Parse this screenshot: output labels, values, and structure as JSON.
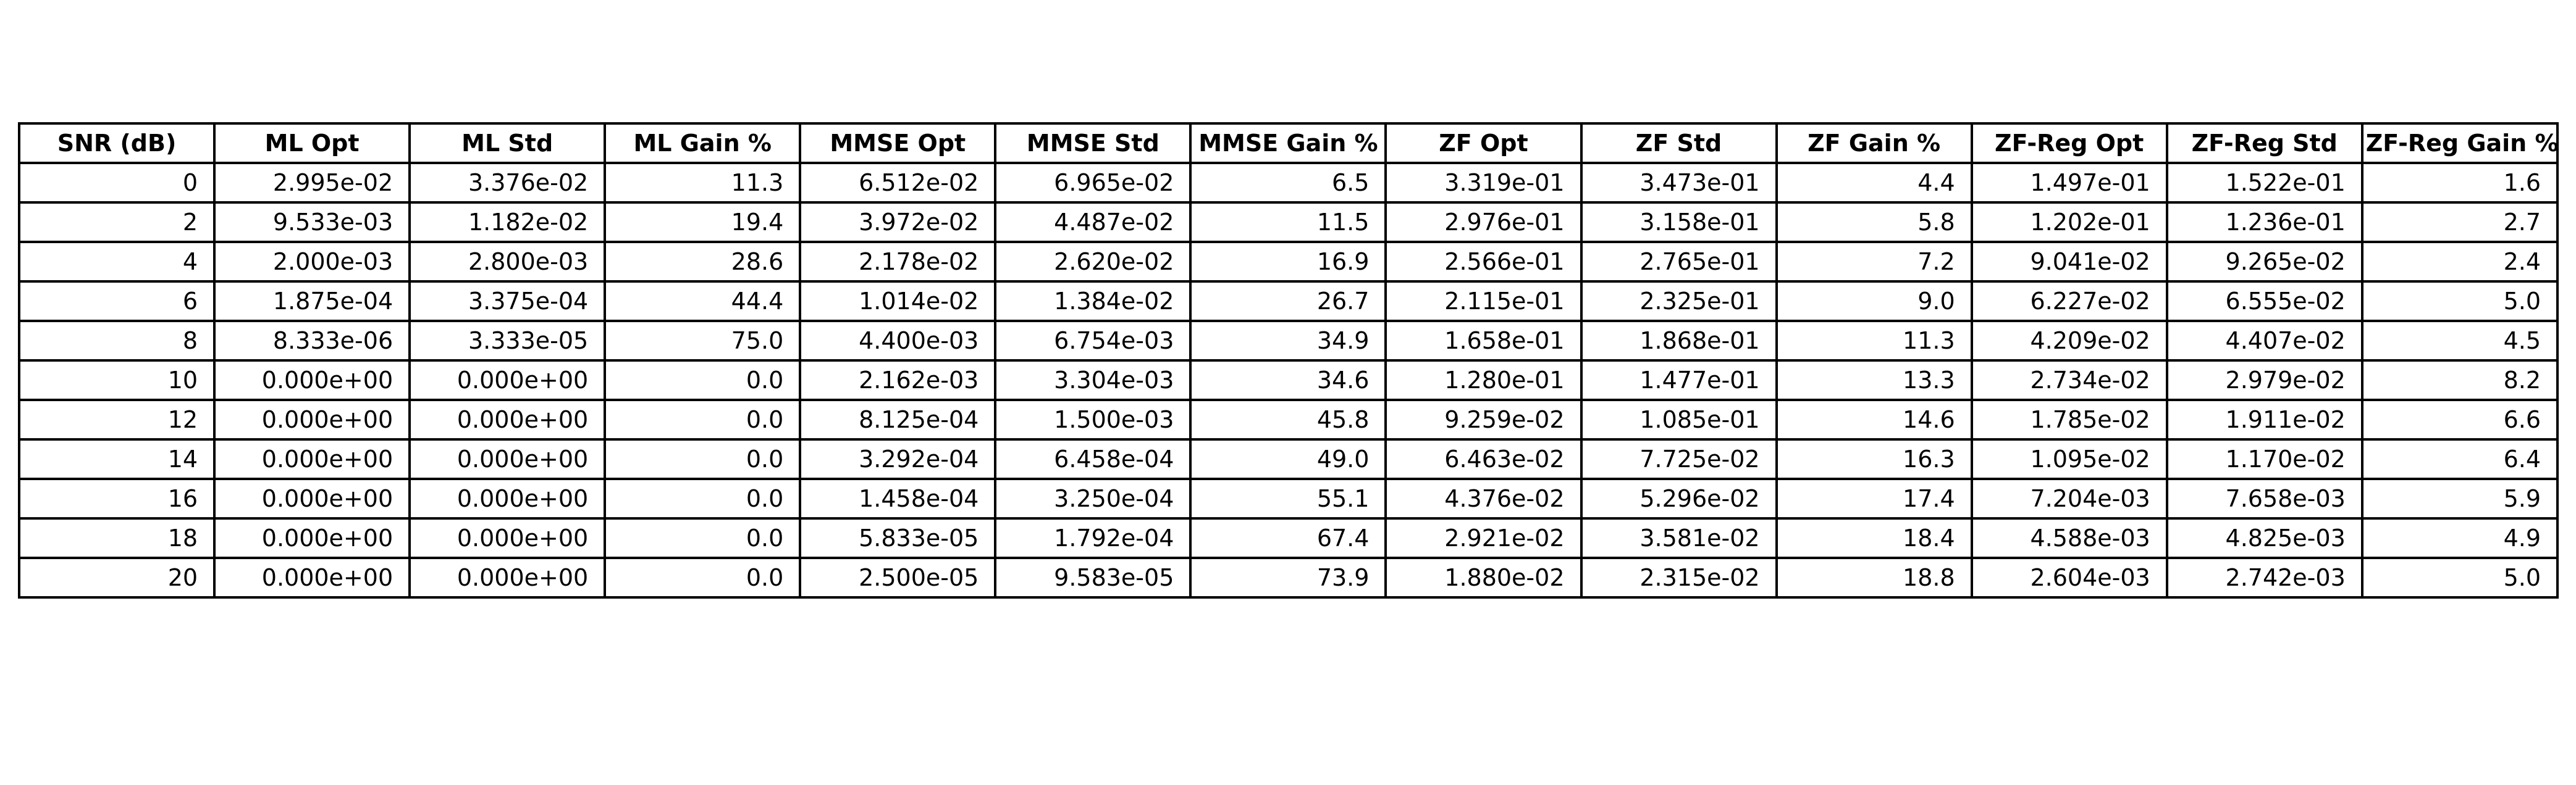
{
  "chart_data": {
    "type": "table",
    "columns": [
      "SNR (dB)",
      "ML Opt",
      "ML Std",
      "ML Gain %",
      "MMSE Opt",
      "MMSE Std",
      "MMSE Gain %",
      "ZF Opt",
      "ZF Std",
      "ZF Gain %",
      "ZF-Reg Opt",
      "ZF-Reg Std",
      "ZF-Reg Gain %"
    ],
    "rows": [
      [
        "0",
        "2.995e-02",
        "3.376e-02",
        "11.3",
        "6.512e-02",
        "6.965e-02",
        "6.5",
        "3.319e-01",
        "3.473e-01",
        "4.4",
        "1.497e-01",
        "1.522e-01",
        "1.6"
      ],
      [
        "2",
        "9.533e-03",
        "1.182e-02",
        "19.4",
        "3.972e-02",
        "4.487e-02",
        "11.5",
        "2.976e-01",
        "3.158e-01",
        "5.8",
        "1.202e-01",
        "1.236e-01",
        "2.7"
      ],
      [
        "4",
        "2.000e-03",
        "2.800e-03",
        "28.6",
        "2.178e-02",
        "2.620e-02",
        "16.9",
        "2.566e-01",
        "2.765e-01",
        "7.2",
        "9.041e-02",
        "9.265e-02",
        "2.4"
      ],
      [
        "6",
        "1.875e-04",
        "3.375e-04",
        "44.4",
        "1.014e-02",
        "1.384e-02",
        "26.7",
        "2.115e-01",
        "2.325e-01",
        "9.0",
        "6.227e-02",
        "6.555e-02",
        "5.0"
      ],
      [
        "8",
        "8.333e-06",
        "3.333e-05",
        "75.0",
        "4.400e-03",
        "6.754e-03",
        "34.9",
        "1.658e-01",
        "1.868e-01",
        "11.3",
        "4.209e-02",
        "4.407e-02",
        "4.5"
      ],
      [
        "10",
        "0.000e+00",
        "0.000e+00",
        "0.0",
        "2.162e-03",
        "3.304e-03",
        "34.6",
        "1.280e-01",
        "1.477e-01",
        "13.3",
        "2.734e-02",
        "2.979e-02",
        "8.2"
      ],
      [
        "12",
        "0.000e+00",
        "0.000e+00",
        "0.0",
        "8.125e-04",
        "1.500e-03",
        "45.8",
        "9.259e-02",
        "1.085e-01",
        "14.6",
        "1.785e-02",
        "1.911e-02",
        "6.6"
      ],
      [
        "14",
        "0.000e+00",
        "0.000e+00",
        "0.0",
        "3.292e-04",
        "6.458e-04",
        "49.0",
        "6.463e-02",
        "7.725e-02",
        "16.3",
        "1.095e-02",
        "1.170e-02",
        "6.4"
      ],
      [
        "16",
        "0.000e+00",
        "0.000e+00",
        "0.0",
        "1.458e-04",
        "3.250e-04",
        "55.1",
        "4.376e-02",
        "5.296e-02",
        "17.4",
        "7.204e-03",
        "7.658e-03",
        "5.9"
      ],
      [
        "18",
        "0.000e+00",
        "0.000e+00",
        "0.0",
        "5.833e-05",
        "1.792e-04",
        "67.4",
        "2.921e-02",
        "3.581e-02",
        "18.4",
        "4.588e-03",
        "4.825e-03",
        "4.9"
      ],
      [
        "20",
        "0.000e+00",
        "0.000e+00",
        "0.0",
        "2.500e-05",
        "9.583e-05",
        "73.9",
        "1.880e-02",
        "2.315e-02",
        "18.8",
        "2.604e-03",
        "2.742e-03",
        "5.0"
      ]
    ]
  }
}
